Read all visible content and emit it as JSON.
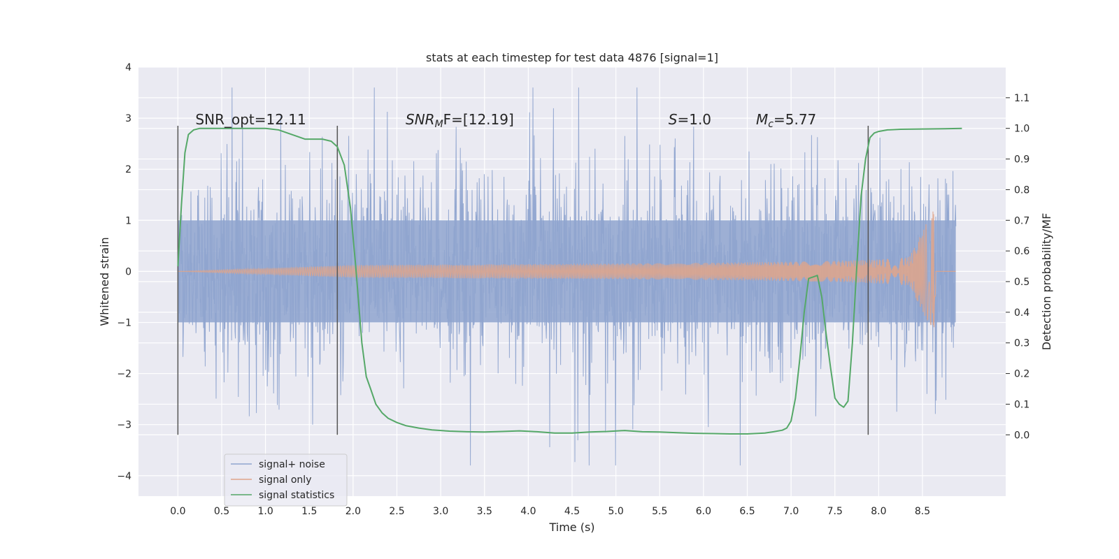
{
  "chart_data": {
    "type": "line",
    "title": "stats at each timestep for test data 4876 [signal=1]",
    "xlabel": "Time (s)",
    "ylabel": "Whitened strain",
    "ylabel_right": "Detection probability/MF",
    "xlim": [
      -0.45,
      9.45
    ],
    "ylim": [
      -4.4,
      4.0
    ],
    "ylim_right": [
      -0.2,
      1.2
    ],
    "x_ticks": [
      0.0,
      0.5,
      1.0,
      1.5,
      2.0,
      2.5,
      3.0,
      3.5,
      4.0,
      4.5,
      5.0,
      5.5,
      6.0,
      6.5,
      7.0,
      7.5,
      8.0,
      8.5
    ],
    "x_tick_labels": [
      "0.0",
      "0.5",
      "1.0",
      "1.5",
      "2.0",
      "2.5",
      "3.0",
      "3.5",
      "4.0",
      "4.5",
      "5.0",
      "5.5",
      "6.0",
      "6.5",
      "7.0",
      "7.5",
      "8.0",
      "8.5"
    ],
    "y_ticks": [
      4,
      3,
      2,
      1,
      0,
      -1,
      -2,
      -3,
      -4
    ],
    "y_tick_labels": [
      "4",
      "3",
      "2",
      "1",
      "0",
      "−1",
      "−2",
      "−3",
      "−4"
    ],
    "y2_ticks": [
      1.1,
      1.0,
      0.9,
      0.8,
      0.7,
      0.6,
      0.5,
      0.4,
      0.3,
      0.2,
      0.1,
      0.0
    ],
    "y2_tick_labels": [
      "1.1",
      "1.0",
      "0.9",
      "0.8",
      "0.7",
      "0.6",
      "0.5",
      "0.4",
      "0.3",
      "0.2",
      "0.1",
      "0.0"
    ],
    "grid": true,
    "legend_position": "bottom-left",
    "series": [
      {
        "name": "signal+ noise",
        "color": "#8fa4cf",
        "axis": "left",
        "t_start": 0.0,
        "t_end": 8.88,
        "envelope_abs": 1.0,
        "peak_range": [
          -3.8,
          3.6
        ]
      },
      {
        "name": "signal only",
        "color": "#e0a58a",
        "axis": "left",
        "t_start": 0.0,
        "t_end": 8.88,
        "merger_time": 8.65,
        "peak_amplitude": 1.25
      },
      {
        "name": "signal statistics",
        "color": "#55a868",
        "axis": "right",
        "x": [
          0.0,
          0.04,
          0.08,
          0.12,
          0.18,
          0.25,
          0.35,
          0.5,
          0.7,
          0.9,
          1.0,
          1.15,
          1.25,
          1.35,
          1.45,
          1.55,
          1.65,
          1.75,
          1.82,
          1.9,
          1.97,
          2.03,
          2.1,
          2.15,
          2.2,
          2.26,
          2.33,
          2.4,
          2.5,
          2.6,
          2.75,
          2.9,
          3.1,
          3.3,
          3.5,
          3.7,
          3.9,
          4.1,
          4.3,
          4.5,
          4.7,
          4.9,
          5.1,
          5.3,
          5.5,
          5.7,
          5.9,
          6.1,
          6.3,
          6.5,
          6.7,
          6.8,
          6.9,
          6.95,
          7.0,
          7.05,
          7.1,
          7.15,
          7.2,
          7.25,
          7.3,
          7.35,
          7.4,
          7.45,
          7.5,
          7.55,
          7.6,
          7.65,
          7.7,
          7.75,
          7.8,
          7.85,
          7.9,
          7.95,
          8.0,
          8.1,
          8.25,
          8.5,
          8.75,
          8.95
        ],
        "values": [
          0.55,
          0.75,
          0.92,
          0.98,
          0.995,
          1.0,
          1.0,
          1.0,
          1.0,
          1.0,
          1.0,
          0.995,
          0.985,
          0.975,
          0.965,
          0.965,
          0.965,
          0.958,
          0.94,
          0.88,
          0.74,
          0.55,
          0.3,
          0.19,
          0.15,
          0.1,
          0.072,
          0.054,
          0.04,
          0.03,
          0.022,
          0.016,
          0.012,
          0.01,
          0.009,
          0.011,
          0.013,
          0.01,
          0.006,
          0.006,
          0.009,
          0.011,
          0.014,
          0.01,
          0.009,
          0.007,
          0.005,
          0.004,
          0.003,
          0.003,
          0.006,
          0.01,
          0.015,
          0.022,
          0.045,
          0.12,
          0.25,
          0.4,
          0.51,
          0.515,
          0.52,
          0.45,
          0.33,
          0.22,
          0.12,
          0.1,
          0.09,
          0.11,
          0.3,
          0.55,
          0.78,
          0.9,
          0.97,
          0.985,
          0.99,
          0.995,
          0.997,
          0.998,
          0.999,
          1.0
        ]
      }
    ],
    "vertical_markers": [
      {
        "x": 0.0,
        "y_range": [
          -3.2,
          2.85
        ]
      },
      {
        "x": 1.82,
        "y_range": [
          -3.2,
          2.85
        ]
      },
      {
        "x": 7.88,
        "y_range": [
          -3.2,
          2.85
        ]
      }
    ],
    "annotations": [
      {
        "text": "SNR_opt=12.11",
        "x": 0.2,
        "y": 2.88
      },
      {
        "text_main": "SNR",
        "text_sub": "M",
        "text_rest": "F=[12.19]",
        "x": 2.6,
        "y": 2.88
      },
      {
        "text_main": "S",
        "text_rest": "=1.0",
        "x": 5.6,
        "y": 2.88
      },
      {
        "text_main": "M",
        "text_sub": "c",
        "text_rest": "=5.77",
        "x": 6.6,
        "y": 2.88
      }
    ]
  }
}
